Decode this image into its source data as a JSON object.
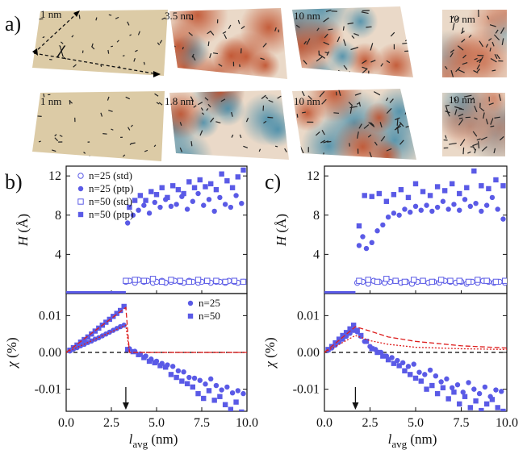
{
  "panel_a": {
    "label": "a)",
    "row1": [
      {
        "label": "1 nm"
      },
      {
        "label": "3.5 nm"
      },
      {
        "label": "10 nm"
      },
      {
        "label": "10 nm"
      }
    ],
    "row2": [
      {
        "label": "1 nm"
      },
      {
        "label": "1.8 nm"
      },
      {
        "label": "10 nm"
      },
      {
        "label": "10 nm"
      }
    ],
    "chi_symbol": "χ",
    "colors": {
      "flat": "#dccba6",
      "red": "#c4542f",
      "blue": "#4f8fab",
      "neutral": "#ead9c8",
      "stick": "#222222"
    }
  },
  "chart_data": [
    {
      "panel": "b)",
      "type": "scatter",
      "xlim": [
        0,
        10
      ],
      "xticks": [
        "0.0",
        "2.5",
        "5.0",
        "7.5",
        "10.0"
      ],
      "xlabel": "l_avg (nm)",
      "top": {
        "ylabel": "H (Å)",
        "ylim": [
          0,
          13
        ],
        "yticks": [
          "4",
          "8",
          "12"
        ],
        "legend": [
          "n=25 (std)",
          "n=25 (ptp)",
          "n=50 (std)",
          "n=50 (ptp)"
        ],
        "legend_position": "top-left",
        "series": [
          {
            "name": "n=25 (std)",
            "marker": "open-circle",
            "x": [
              3.3,
              3.5,
              3.8,
              4.0,
              4.3,
              4.5,
              4.8,
              5.0,
              5.3,
              5.5,
              5.8,
              6.0,
              6.3,
              6.5,
              6.8,
              7.0,
              7.3,
              7.5,
              7.8,
              8.0,
              8.3,
              8.5,
              8.8,
              9.0,
              9.3,
              9.5,
              9.8
            ],
            "y": [
              1.2,
              1.3,
              1.1,
              1.4,
              1.2,
              1.3,
              1.1,
              1.2,
              1.3,
              1.1,
              1.2,
              1.3,
              1.2,
              1.1,
              1.3,
              1.2,
              1.1,
              1.2,
              1.3,
              1.1,
              1.2,
              1.2,
              1.1,
              1.3,
              1.2,
              1.1,
              1.2
            ]
          },
          {
            "name": "n=25 (ptp)",
            "marker": "filled-circle",
            "x": [
              3.4,
              3.7,
              4.0,
              4.3,
              4.6,
              4.9,
              5.2,
              5.5,
              5.8,
              6.1,
              6.4,
              6.7,
              7.0,
              7.3,
              7.6,
              7.9,
              8.2,
              8.5,
              8.8,
              9.1,
              9.4,
              9.7
            ],
            "y": [
              7.2,
              8.0,
              8.5,
              9.0,
              8.2,
              9.3,
              8.8,
              9.6,
              8.9,
              9.1,
              9.9,
              8.6,
              9.4,
              10.2,
              9.0,
              9.6,
              8.4,
              9.8,
              9.1,
              8.8,
              10.0,
              9.2
            ]
          },
          {
            "name": "n=50 (std)",
            "marker": "open-square",
            "x": [
              3.3,
              3.8,
              4.3,
              4.8,
              5.3,
              5.8,
              6.3,
              6.8,
              7.3,
              7.8,
              8.3,
              8.8,
              9.3,
              9.8
            ],
            "y": [
              1.3,
              1.4,
              1.3,
              1.5,
              1.2,
              1.4,
              1.3,
              1.2,
              1.4,
              1.3,
              1.3,
              1.2,
              1.3,
              1.2
            ]
          },
          {
            "name": "n=50 (ptp)",
            "marker": "filled-square",
            "x": [
              3.5,
              3.8,
              4.1,
              4.4,
              4.7,
              5.0,
              5.3,
              5.6,
              5.9,
              6.2,
              6.5,
              6.8,
              7.1,
              7.4,
              7.7,
              8.0,
              8.3,
              8.6,
              8.9,
              9.2,
              9.5,
              9.8
            ],
            "y": [
              8.8,
              9.5,
              10.0,
              9.5,
              10.4,
              10.1,
              10.8,
              9.8,
              11.0,
              10.6,
              10.2,
              11.4,
              10.8,
              11.6,
              10.9,
              11.2,
              10.6,
              12.2,
              11.5,
              10.8,
              11.9,
              12.6
            ]
          }
        ]
      },
      "bottom": {
        "ylabel": "χ (%)",
        "ylim": [
          -0.016,
          0.016
        ],
        "yticks": [
          "0.01",
          "0.00",
          "-0.01"
        ],
        "legend": [
          "n=25",
          "n=50"
        ],
        "legend_position": "top-right",
        "series": [
          {
            "name": "n=25",
            "marker": "filled-circle",
            "x": [
              0.2,
              0.4,
              0.6,
              0.8,
              1.0,
              1.2,
              1.4,
              1.6,
              1.8,
              2.0,
              2.2,
              2.4,
              2.6,
              2.8,
              3.0,
              3.2,
              3.5,
              3.8,
              4.1,
              4.4,
              4.7,
              5.0,
              5.3,
              5.6,
              5.9,
              6.2,
              6.5,
              6.8,
              7.1,
              7.4,
              7.7,
              8.0,
              8.3,
              8.6,
              8.9,
              9.2,
              9.5,
              9.8
            ],
            "y": [
              0.0004,
              0.0009,
              0.0013,
              0.0018,
              0.0022,
              0.0027,
              0.0031,
              0.0036,
              0.004,
              0.0045,
              0.005,
              0.0055,
              0.006,
              0.0065,
              0.007,
              0.0074,
              0.001,
              0.0003,
              -0.0004,
              -0.001,
              -0.0018,
              -0.0024,
              -0.003,
              -0.0034,
              -0.0038,
              -0.005,
              -0.0053,
              -0.0068,
              -0.007,
              -0.0076,
              -0.0086,
              -0.0072,
              -0.009,
              -0.0102,
              -0.0094,
              -0.011,
              -0.0104,
              -0.0112
            ]
          },
          {
            "name": "n=50",
            "marker": "filled-square",
            "x": [
              0.2,
              0.4,
              0.6,
              0.8,
              1.0,
              1.2,
              1.4,
              1.6,
              1.8,
              2.0,
              2.2,
              2.4,
              2.6,
              2.8,
              3.0,
              3.2,
              3.4,
              3.7,
              4.0,
              4.3,
              4.6,
              4.9,
              5.2,
              5.5,
              5.8,
              6.1,
              6.4,
              6.7,
              7.0,
              7.3,
              7.6,
              7.9,
              8.2,
              8.5,
              8.8,
              9.1,
              9.4,
              9.7
            ],
            "y": [
              0.0006,
              0.0013,
              0.002,
              0.0028,
              0.0035,
              0.0042,
              0.005,
              0.0058,
              0.0066,
              0.0074,
              0.0082,
              0.009,
              0.0098,
              0.0106,
              0.0114,
              0.0125,
              0.0008,
              0.0002,
              -0.0006,
              -0.0014,
              -0.0024,
              -0.0028,
              -0.0036,
              -0.004,
              -0.006,
              -0.0068,
              -0.0078,
              -0.0085,
              -0.0094,
              -0.0112,
              -0.0125,
              -0.0104,
              -0.013,
              -0.012,
              -0.0142,
              -0.0155,
              -0.0135,
              -0.0162
            ]
          },
          {
            "name": "theory n=50",
            "style": "dashed",
            "x": [
              0,
              3.3,
              3.5,
              10
            ],
            "y": [
              0,
              0.0122,
              0.0,
              0.0
            ]
          },
          {
            "name": "theory n=25",
            "style": "dotted",
            "x": [
              0,
              3.3,
              3.5,
              10
            ],
            "y": [
              0,
              0.0074,
              0.0,
              0.0
            ]
          }
        ],
        "arrow_x": 3.3
      }
    },
    {
      "panel": "c)",
      "type": "scatter",
      "xlim": [
        0,
        10
      ],
      "xticks": [
        "0.0",
        "2.5",
        "5.0",
        "7.5",
        "10.0"
      ],
      "xlabel": "l_avg (nm)",
      "top": {
        "ylabel": "H (Å)",
        "ylim": [
          0,
          13
        ],
        "yticks": [
          "4",
          "8",
          "12"
        ],
        "series": [
          {
            "name": "n=25 (std)",
            "marker": "open-circle",
            "x": [
              1.8,
              2.1,
              2.4,
              2.7,
              3.0,
              3.3,
              3.6,
              3.9,
              4.2,
              4.5,
              4.8,
              5.1,
              5.4,
              5.7,
              6.0,
              6.3,
              6.6,
              6.9,
              7.2,
              7.5,
              7.8,
              8.1,
              8.4,
              8.7,
              9.0,
              9.3,
              9.6,
              9.9
            ],
            "y": [
              1.1,
              1.2,
              1.0,
              1.3,
              1.2,
              1.1,
              1.2,
              1.3,
              1.1,
              1.2,
              1.0,
              1.2,
              1.3,
              1.1,
              1.2,
              1.1,
              1.3,
              1.2,
              1.1,
              1.2,
              1.0,
              1.2,
              1.1,
              1.3,
              1.2,
              1.1,
              1.2,
              1.1
            ]
          },
          {
            "name": "n=25 (ptp)",
            "marker": "filled-circle",
            "x": [
              1.9,
              2.1,
              2.3,
              2.6,
              2.9,
              3.2,
              3.5,
              3.8,
              4.1,
              4.4,
              4.7,
              5.0,
              5.3,
              5.6,
              5.9,
              6.2,
              6.5,
              6.8,
              7.1,
              7.4,
              7.7,
              8.0,
              8.3,
              8.6,
              8.9,
              9.2,
              9.5,
              9.8
            ],
            "y": [
              4.9,
              5.8,
              4.6,
              5.2,
              6.4,
              7.0,
              7.8,
              8.2,
              8.0,
              8.6,
              8.3,
              8.9,
              8.5,
              9.0,
              8.4,
              8.8,
              9.4,
              8.6,
              9.1,
              8.5,
              9.6,
              8.9,
              9.2,
              8.4,
              9.0,
              9.8,
              8.6,
              7.6
            ]
          },
          {
            "name": "n=50 (std)",
            "marker": "open-square",
            "x": [
              1.9,
              2.4,
              2.9,
              3.4,
              3.9,
              4.4,
              4.9,
              5.4,
              5.9,
              6.4,
              6.9,
              7.4,
              7.9,
              8.4,
              8.9,
              9.4,
              9.9
            ],
            "y": [
              1.3,
              1.4,
              1.2,
              1.5,
              1.3,
              1.2,
              1.4,
              1.3,
              1.2,
              1.4,
              1.3,
              1.3,
              1.2,
              1.4,
              1.3,
              1.2,
              1.3
            ]
          },
          {
            "name": "n=50 (ptp)",
            "marker": "filled-square",
            "x": [
              1.9,
              2.2,
              2.6,
              3.0,
              3.4,
              3.8,
              4.2,
              4.6,
              5.0,
              5.4,
              5.8,
              6.2,
              6.6,
              7.0,
              7.4,
              7.8,
              8.2,
              8.6,
              9.0,
              9.4,
              9.8
            ],
            "y": [
              6.9,
              10.0,
              9.9,
              10.2,
              9.4,
              10.1,
              10.6,
              9.8,
              11.2,
              10.4,
              10.0,
              10.9,
              10.5,
              11.2,
              10.2,
              10.8,
              12.5,
              11.0,
              10.7,
              11.6,
              11.0
            ]
          }
        ]
      },
      "bottom": {
        "ylabel": "χ (%)",
        "ylim": [
          -0.016,
          0.016
        ],
        "yticks": [
          "0.01",
          "0.00",
          "-0.01"
        ],
        "series": [
          {
            "name": "n=25",
            "marker": "filled-circle",
            "x": [
              0.2,
              0.4,
              0.6,
              0.8,
              1.0,
              1.2,
              1.4,
              1.6,
              1.8,
              2.0,
              2.2,
              2.5,
              2.8,
              3.1,
              3.4,
              3.7,
              4.0,
              4.3,
              4.6,
              4.9,
              5.2,
              5.5,
              5.8,
              6.1,
              6.4,
              6.7,
              7.0,
              7.3,
              7.6,
              7.9,
              8.2,
              8.5,
              8.8,
              9.1,
              9.4,
              9.7
            ],
            "y": [
              0.0006,
              0.0012,
              0.002,
              0.0028,
              0.0036,
              0.0044,
              0.0052,
              0.006,
              0.0056,
              0.0044,
              0.003,
              0.0016,
              0.0008,
              0.0,
              -0.001,
              -0.0014,
              -0.0022,
              -0.0028,
              -0.0038,
              -0.0032,
              -0.0054,
              -0.006,
              -0.0048,
              -0.0064,
              -0.008,
              -0.0072,
              -0.0096,
              -0.0088,
              -0.0108,
              -0.0082,
              -0.01,
              -0.0112,
              -0.0094,
              -0.012,
              -0.0102,
              -0.0106
            ]
          },
          {
            "name": "n=50",
            "marker": "filled-square",
            "x": [
              0.2,
              0.4,
              0.6,
              0.8,
              1.0,
              1.2,
              1.4,
              1.6,
              1.8,
              2.0,
              2.3,
              2.6,
              2.9,
              3.2,
              3.5,
              3.8,
              4.1,
              4.4,
              4.7,
              5.0,
              5.3,
              5.6,
              5.9,
              6.2,
              6.5,
              6.8,
              7.1,
              7.4,
              7.7,
              8.0,
              8.3,
              8.6,
              8.9,
              9.2,
              9.5,
              9.8
            ],
            "y": [
              0.0008,
              0.0016,
              0.0026,
              0.0036,
              0.0046,
              0.0054,
              0.0064,
              0.0074,
              0.006,
              0.0046,
              0.003,
              0.001,
              0.0,
              -0.001,
              -0.002,
              -0.003,
              -0.0036,
              -0.005,
              -0.006,
              -0.007,
              -0.0078,
              -0.01,
              -0.009,
              -0.0112,
              -0.0096,
              -0.0126,
              -0.0108,
              -0.014,
              -0.012,
              -0.015,
              -0.0132,
              -0.0158,
              -0.014,
              -0.0128,
              -0.015,
              -0.016
            ]
          },
          {
            "name": "theory n=50",
            "style": "dashed",
            "x": [
              0,
              1.7,
              2.5,
              3.5,
              5.0,
              7.5,
              10
            ],
            "y": [
              0,
              0.007,
              0.0058,
              0.0042,
              0.003,
              0.0018,
              0.0012
            ]
          },
          {
            "name": "theory n=25",
            "style": "dotted",
            "x": [
              0,
              1.7,
              2.5,
              3.5,
              5.0,
              7.5,
              10
            ],
            "y": [
              0,
              0.0046,
              0.0032,
              0.0022,
              0.0014,
              0.001,
              0.0008
            ]
          }
        ],
        "arrow_x": 1.7
      }
    }
  ],
  "style": {
    "marker_color": "#5a5ae6",
    "theory_color": "#dd1f1f",
    "zero_line_color": "#000000"
  }
}
